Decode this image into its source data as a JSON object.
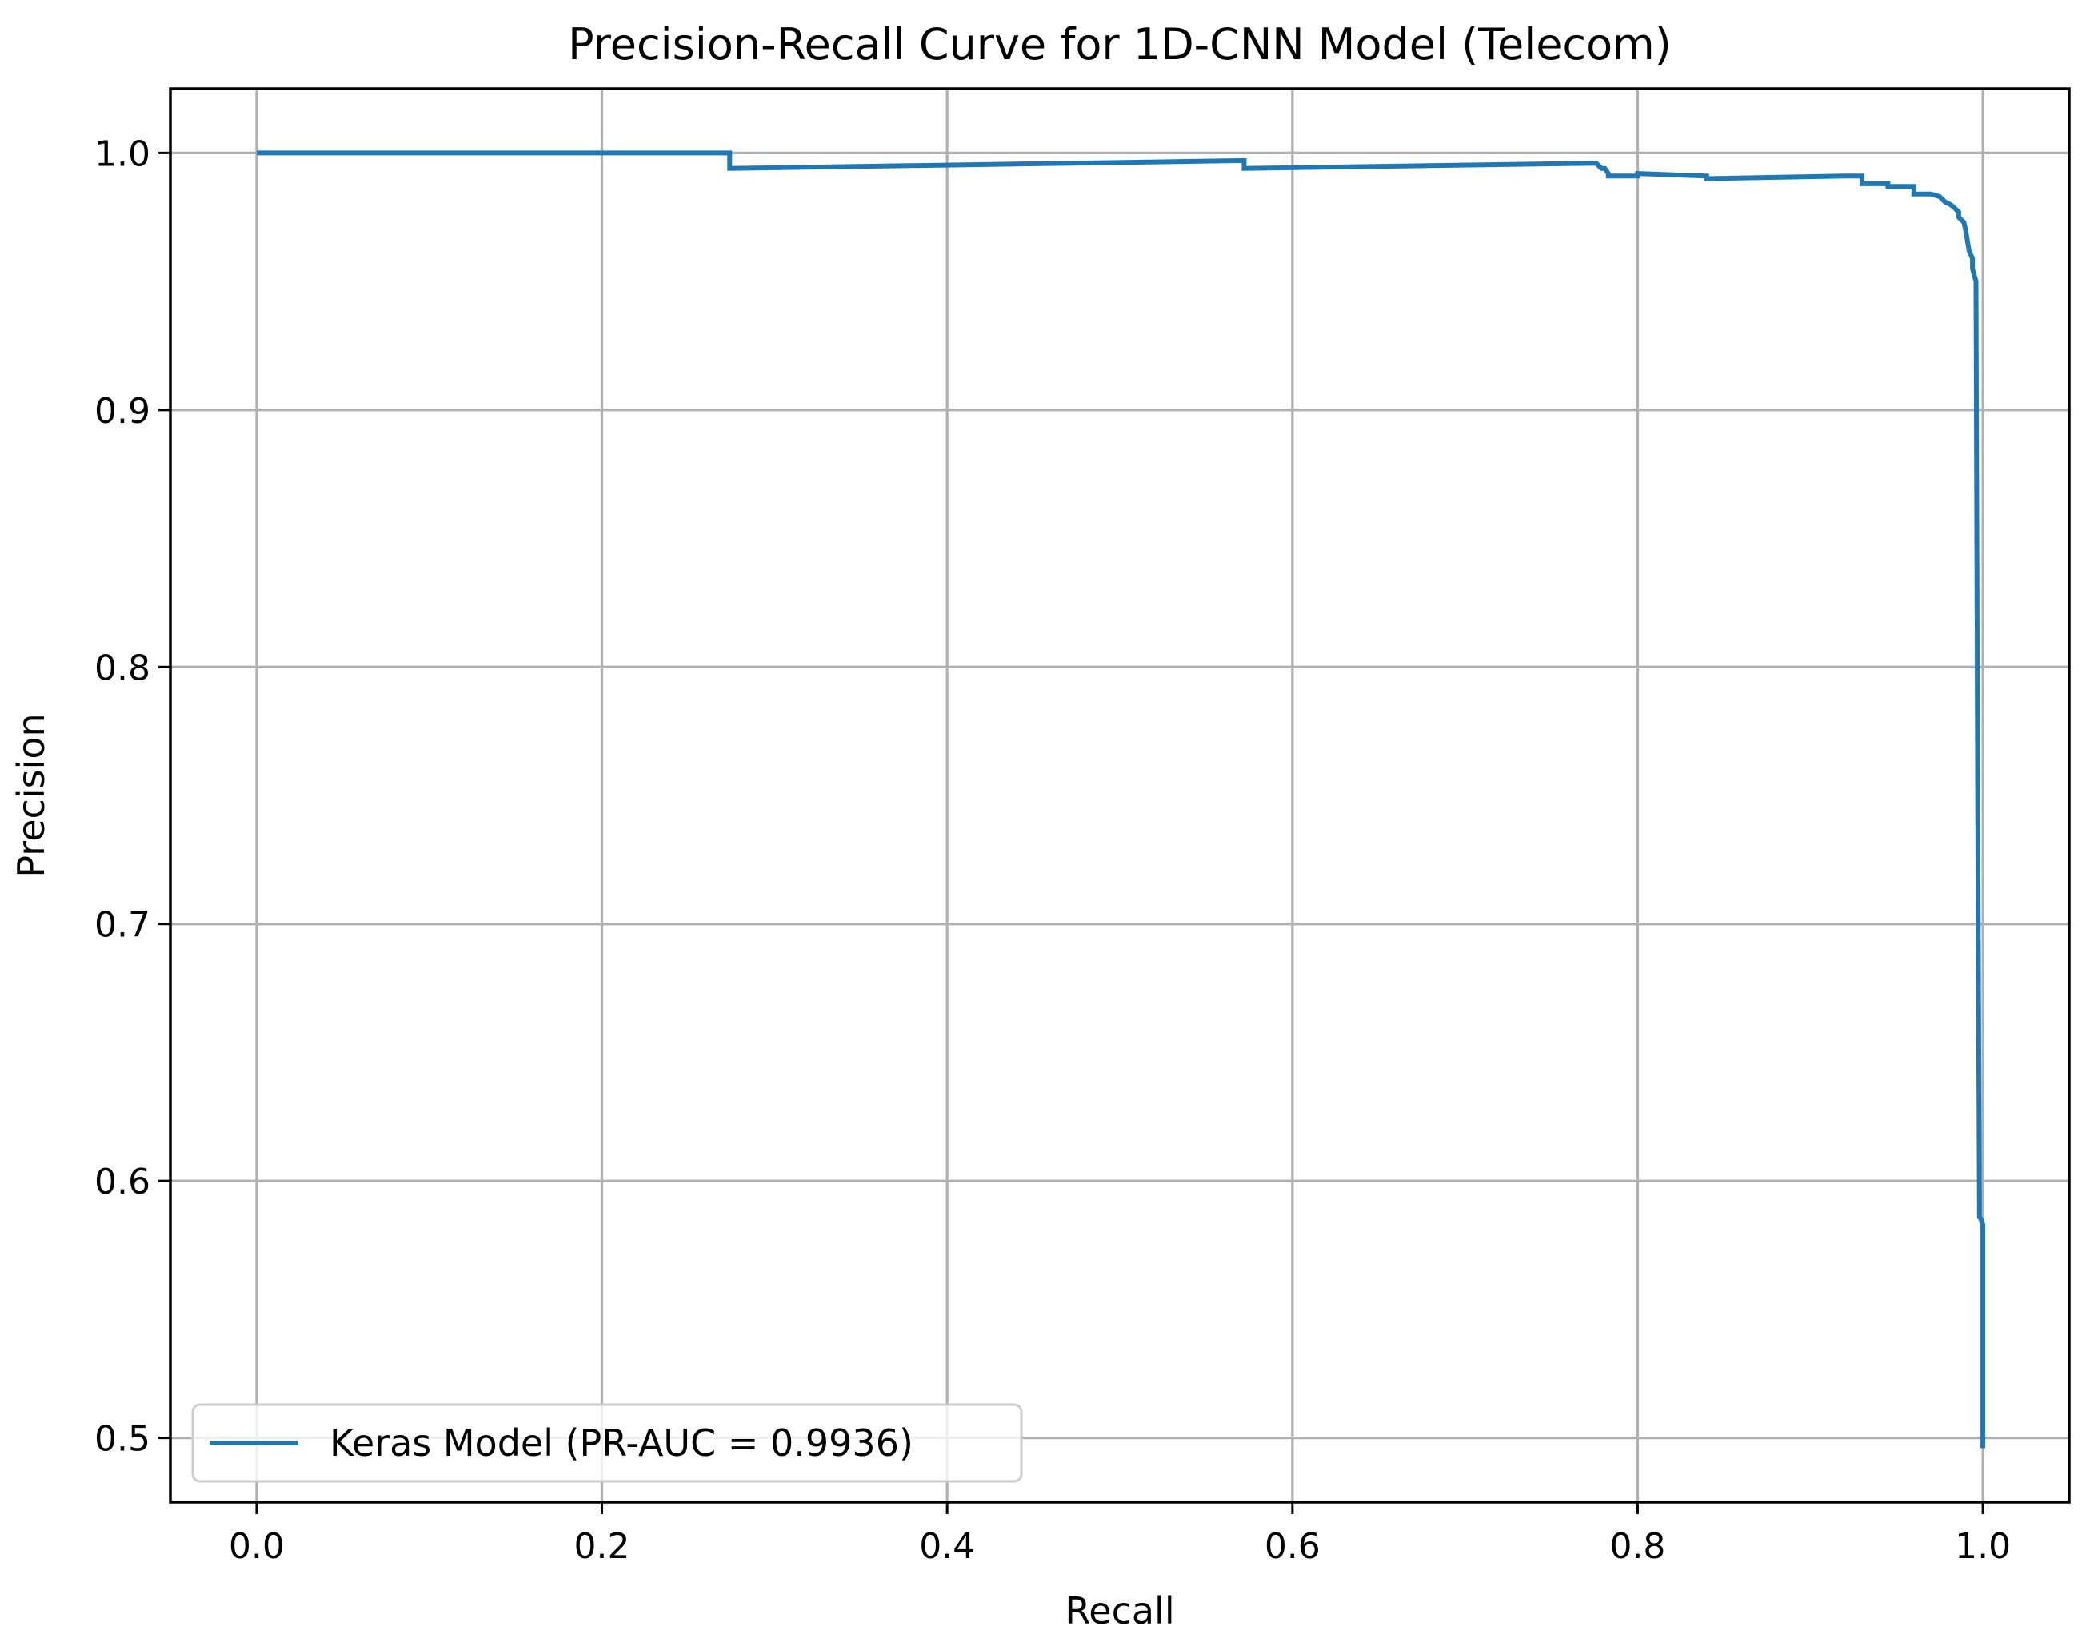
{
  "chart_data": {
    "type": "line",
    "title": "Precision-Recall Curve for 1D-CNN Model (Telecom)",
    "xlabel": "Recall",
    "ylabel": "Precision",
    "xlim": [
      -0.05,
      1.05
    ],
    "ylim": [
      0.475,
      1.025
    ],
    "xticks": [
      0.0,
      0.2,
      0.4,
      0.6,
      0.8,
      1.0
    ],
    "xtick_labels": [
      "0.0",
      "0.2",
      "0.4",
      "0.6",
      "0.8",
      "1.0"
    ],
    "yticks": [
      0.5,
      0.6,
      0.7,
      0.8,
      0.9,
      1.0
    ],
    "ytick_labels": [
      "0.5",
      "0.6",
      "0.7",
      "0.8",
      "0.9",
      "1.0"
    ],
    "grid": true,
    "legend_position": "lower-left",
    "series": [
      {
        "name": "Keras Model (PR-AUC = 0.9936)",
        "color": "#1f77b4",
        "x": [
          0.0,
          0.274,
          0.274,
          0.57,
          0.572,
          0.572,
          0.776,
          0.779,
          0.781,
          0.783,
          0.783,
          0.8,
          0.8,
          0.84,
          0.84,
          0.92,
          0.93,
          0.93,
          0.945,
          0.945,
          0.96,
          0.96,
          0.97,
          0.975,
          0.978,
          0.981,
          0.983,
          0.986,
          0.986,
          0.989,
          0.99,
          0.991,
          0.992,
          0.994,
          0.994,
          0.996,
          0.997,
          0.998,
          0.998,
          0.999,
          1.0,
          1.0
        ],
        "y": [
          1.0,
          1.0,
          0.994,
          0.997,
          0.997,
          0.994,
          0.996,
          0.994,
          0.994,
          0.992,
          0.991,
          0.991,
          0.992,
          0.991,
          0.99,
          0.991,
          0.991,
          0.988,
          0.988,
          0.987,
          0.987,
          0.984,
          0.984,
          0.983,
          0.981,
          0.98,
          0.979,
          0.977,
          0.975,
          0.973,
          0.97,
          0.966,
          0.962,
          0.959,
          0.955,
          0.95,
          0.75,
          0.59,
          0.586,
          0.585,
          0.583,
          0.496
        ]
      }
    ]
  }
}
